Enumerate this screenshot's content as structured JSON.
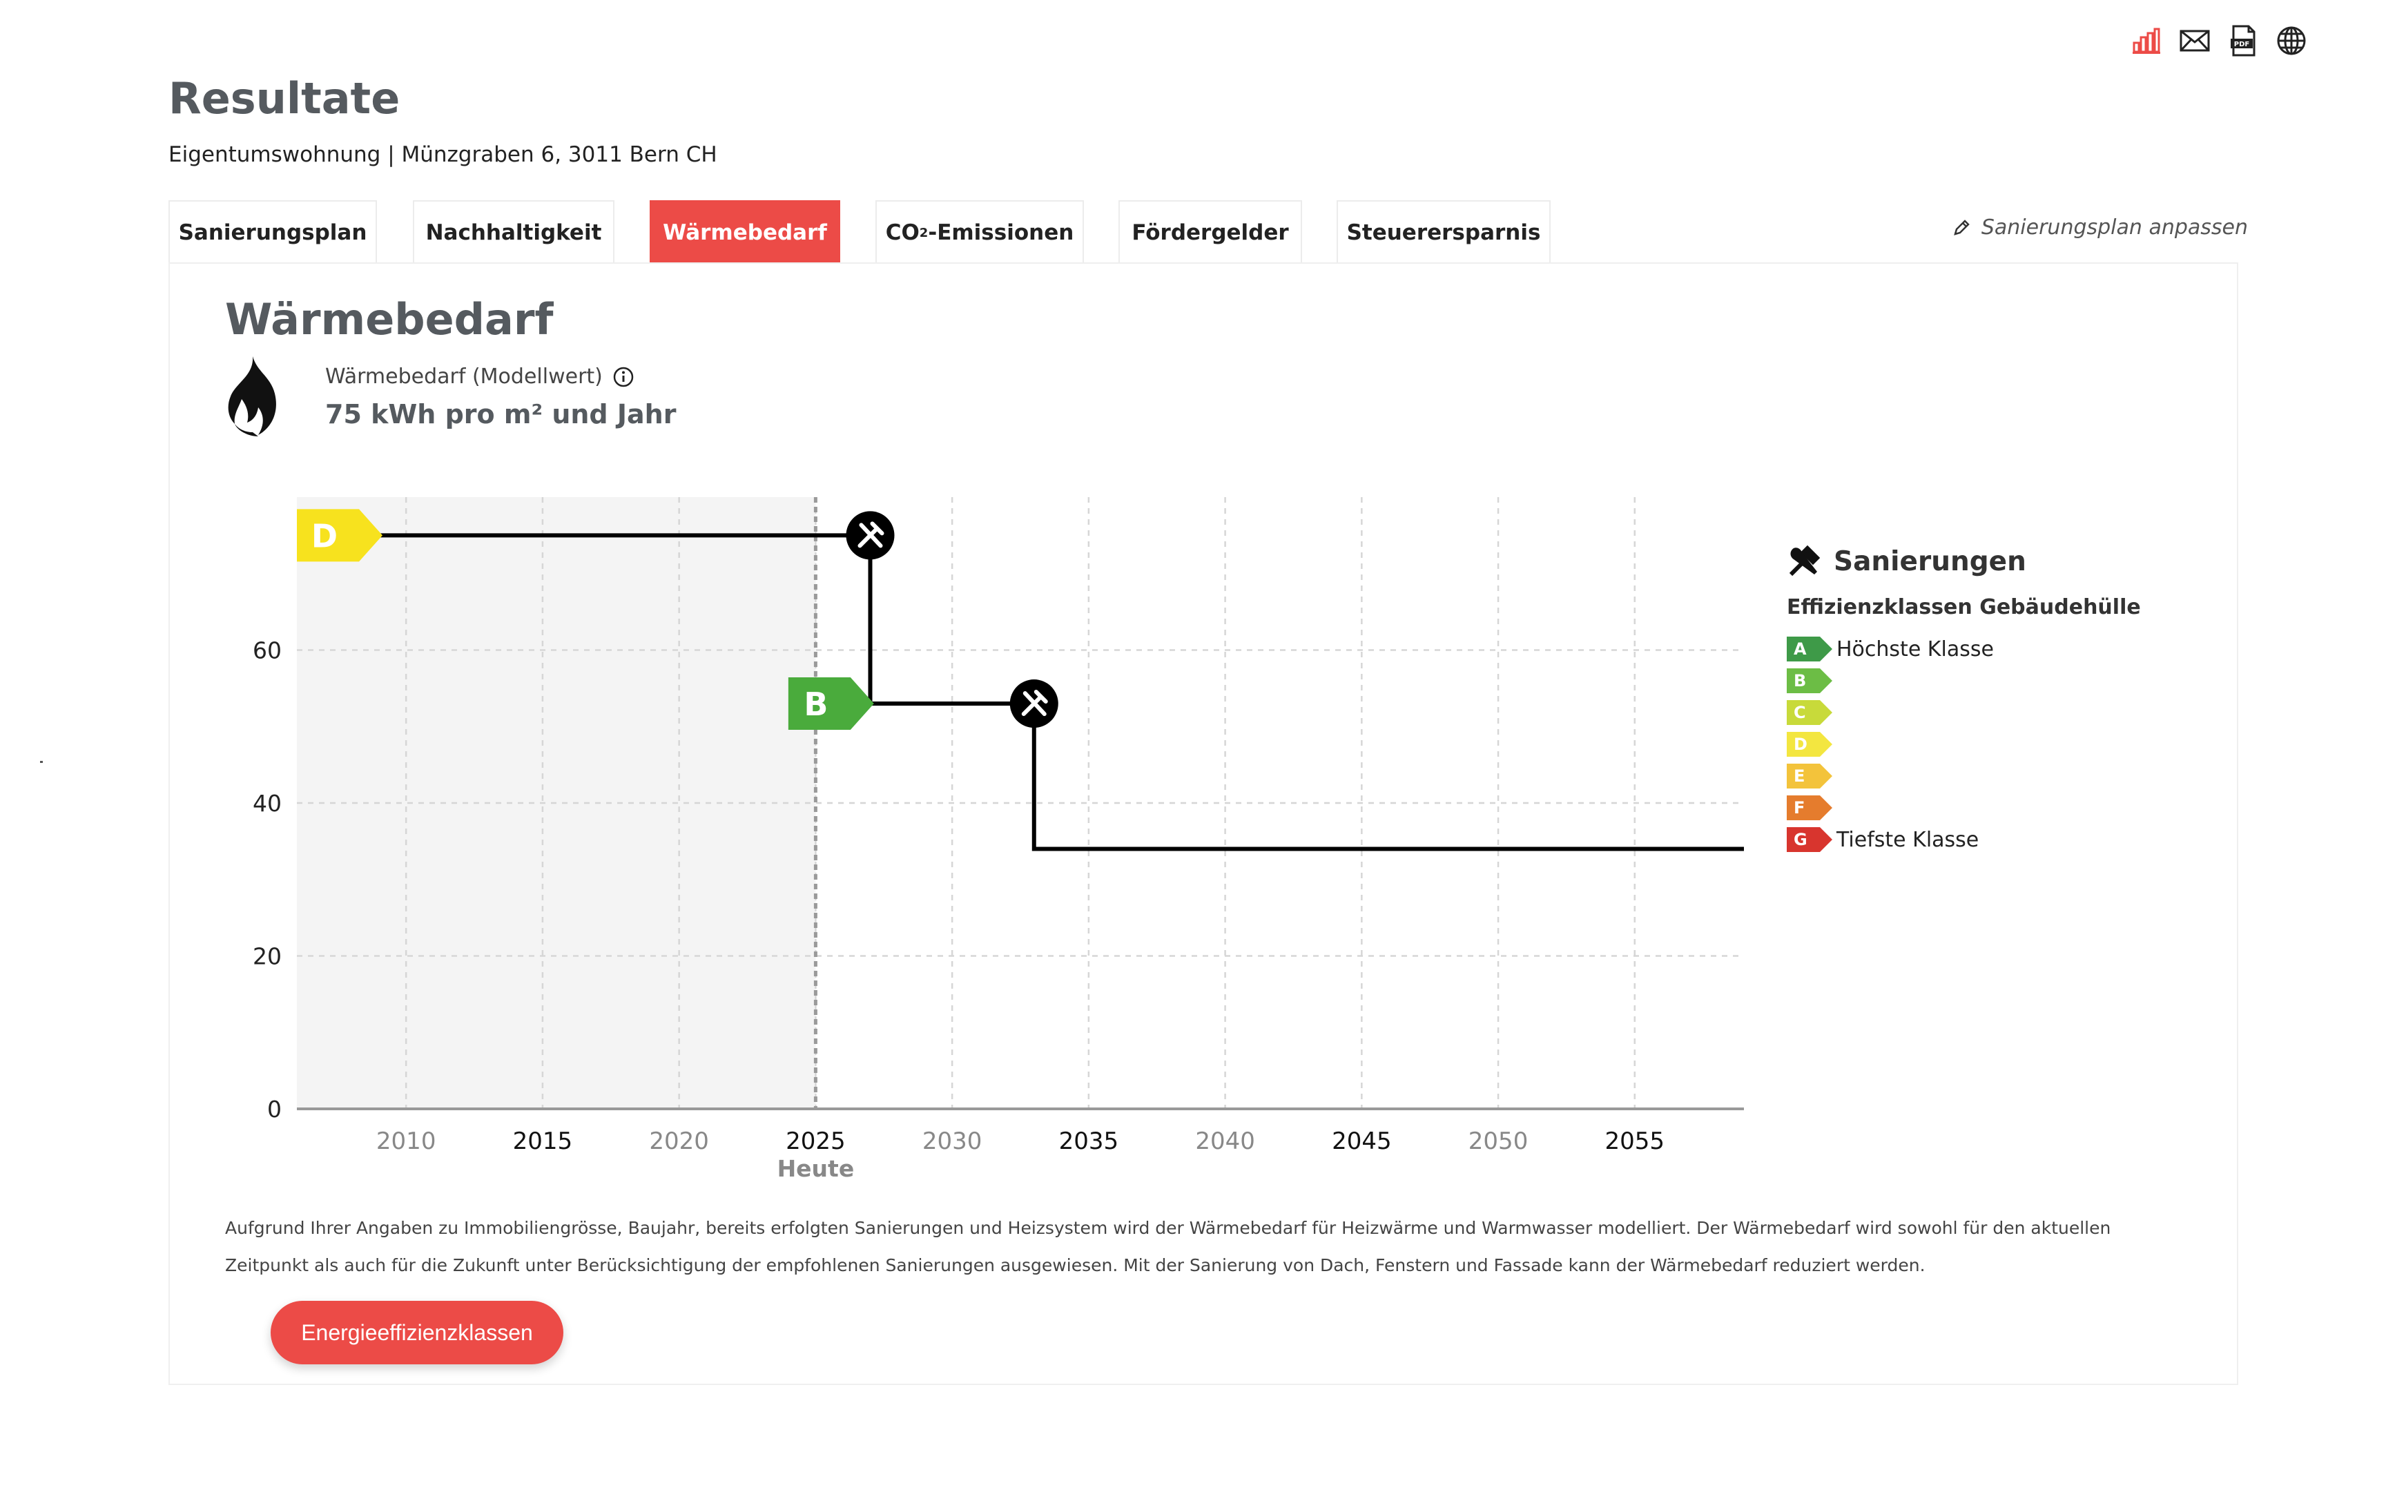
{
  "header": {
    "title": "Resultate",
    "subtitle": "Eigentumswohnung | Münzgraben 6, 3011 Bern CH",
    "icons": [
      "chart-icon",
      "mail-icon",
      "pdf-icon",
      "globe-icon"
    ]
  },
  "tabs": [
    {
      "label": "Sanierungsplan",
      "active": false
    },
    {
      "label": "Nachhaltigkeit",
      "active": false
    },
    {
      "label": "Wärmebedarf",
      "active": true
    },
    {
      "label_pre": "CO",
      "label_sub": "2",
      "label_post": "-Emissionen",
      "active": false
    },
    {
      "label": "Fördergelder",
      "active": false
    },
    {
      "label": "Steuerersparnis",
      "active": false
    }
  ],
  "adjust_link": "Sanierungsplan anpassen",
  "section": {
    "title": "Wärmebedarf",
    "metric_label": "Wärmebedarf (Modellwert)",
    "metric_value": "75 kWh pro m² und Jahr"
  },
  "chart_data": {
    "type": "line",
    "step": true,
    "x_ticks": [
      2010,
      2015,
      2020,
      2025,
      2030,
      2035,
      2040,
      2045,
      2050,
      2055
    ],
    "y_ticks": [
      0,
      20,
      40,
      60
    ],
    "xlim": [
      2006,
      2059
    ],
    "ylim": [
      0,
      80
    ],
    "today_year": 2025,
    "today_label": "Heute",
    "grid": true,
    "legend": "right",
    "series": [
      {
        "points": [
          [
            2006,
            75
          ],
          [
            2027,
            75
          ],
          [
            2027,
            53
          ],
          [
            2033,
            53
          ],
          [
            2033,
            34
          ],
          [
            2059,
            34
          ]
        ],
        "color": "#000000"
      }
    ],
    "renovations": [
      {
        "x": 2027,
        "y": 75
      },
      {
        "x": 2033,
        "y": 53
      }
    ],
    "class_markers": [
      {
        "label": "D",
        "x": 2006,
        "y": 75,
        "color": "#f7e21e"
      },
      {
        "label": "B",
        "x": 2024,
        "y": 53,
        "color": "#4aab3c"
      }
    ]
  },
  "legend": {
    "title": "Sanierungen",
    "subtitle": "Effizienzklassen Gebäudehülle",
    "classes": [
      {
        "label": "A",
        "color": "#3e9a48",
        "text": "Höchste Klasse"
      },
      {
        "label": "B",
        "color": "#6cbd45",
        "text": ""
      },
      {
        "label": "C",
        "color": "#c8da3a",
        "text": ""
      },
      {
        "label": "D",
        "color": "#f3e640",
        "text": ""
      },
      {
        "label": "E",
        "color": "#f3c33b",
        "text": ""
      },
      {
        "label": "F",
        "color": "#e57c2d",
        "text": ""
      },
      {
        "label": "G",
        "color": "#d8352e",
        "text": "Tiefste Klasse"
      }
    ]
  },
  "description": "Aufgrund Ihrer Angaben zu Immobiliengrösse, Baujahr, bereits erfolgten Sanierungen und Heizsystem wird der Wärmebedarf für Heizwärme und Warmwasser modelliert. Der Wärmebedarf wird sowohl für den aktuellen Zeitpunkt als auch für die Zukunft unter Berücksichtigung der empfohlenen Sanierungen ausgewiesen. Mit der Sanierung von Dach, Fenstern und Fassade kann der Wärmebedarf reduziert werden.",
  "cta_label": "Energieeffizienzklassen",
  "colors": {
    "accent": "#ec4b47",
    "heading": "#555a5f"
  }
}
